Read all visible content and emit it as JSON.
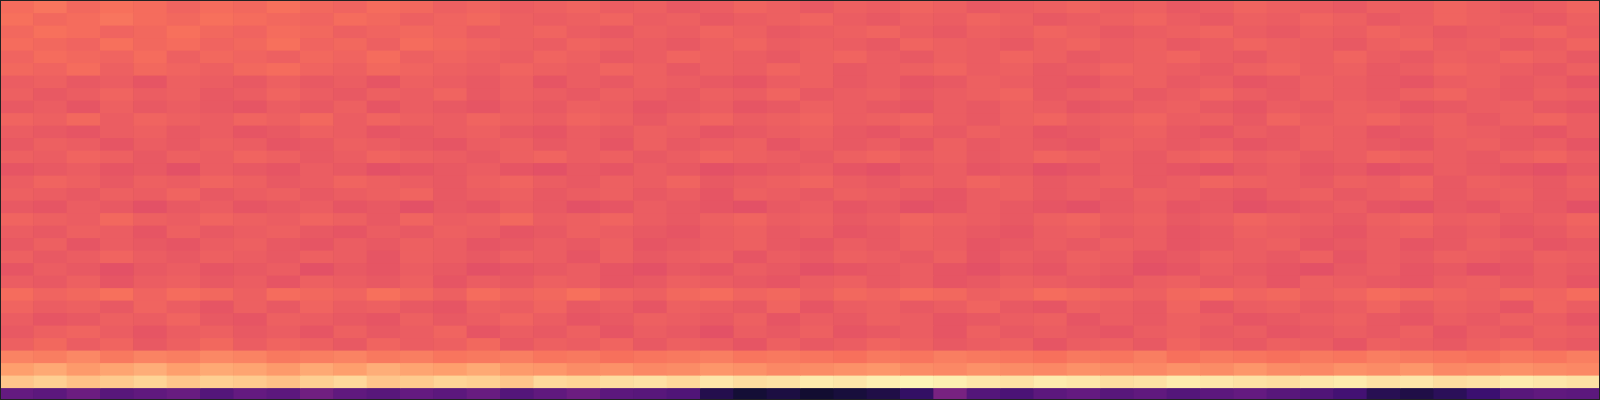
{
  "chart_data": {
    "type": "heatmap",
    "xlim": [
      0,
      48
    ],
    "ylim": [
      0,
      32
    ],
    "zlim": [
      0,
      100
    ],
    "tick_labels": false,
    "grid": false,
    "cells": [
      [
        30,
        28,
        32,
        27,
        29,
        31,
        26,
        30,
        28,
        33,
        29,
        27,
        30,
        28,
        31,
        26,
        29,
        32,
        28,
        27,
        25,
        14,
        10,
        12,
        9,
        11,
        13,
        18,
        35,
        26,
        24,
        28,
        30,
        27,
        29,
        26,
        28,
        30,
        27,
        25,
        22,
        15,
        13,
        16,
        20,
        27,
        29,
        28
      ],
      [
        88,
        90,
        87,
        89,
        91,
        88,
        90,
        89,
        87,
        90,
        92,
        88,
        89,
        91,
        90,
        88,
        92,
        91,
        93,
        94,
        92,
        95,
        93,
        94,
        96,
        95,
        97,
        98,
        97,
        95,
        94,
        96,
        95,
        93,
        94,
        96,
        95,
        94,
        93,
        95,
        96,
        94,
        95,
        93,
        94,
        96,
        95,
        94
      ],
      [
        80,
        82,
        79,
        81,
        83,
        80,
        82,
        81,
        79,
        82,
        80,
        83,
        81,
        80,
        82,
        79,
        78,
        76,
        77,
        75,
        76,
        78,
        77,
        75,
        76,
        77,
        78,
        76,
        75,
        77,
        76,
        75,
        77,
        76,
        75,
        77,
        76,
        78,
        76,
        75,
        77,
        76,
        78,
        75,
        76,
        77,
        76,
        75
      ],
      [
        74,
        73,
        75,
        72,
        74,
        73,
        75,
        74,
        72,
        73,
        74,
        72,
        73,
        71,
        72,
        73,
        71,
        72,
        70,
        71,
        72,
        73,
        71,
        72,
        71,
        70,
        72,
        71,
        73,
        72,
        71,
        70,
        72,
        71,
        73,
        70,
        72,
        71,
        70,
        72,
        71,
        73,
        72,
        71,
        70,
        72,
        71,
        73
      ],
      [
        66,
        68,
        65,
        67,
        64,
        66,
        68,
        65,
        67,
        66,
        64,
        67,
        65,
        66,
        68,
        64,
        66,
        65,
        67,
        64,
        66,
        65,
        63,
        66,
        64,
        65,
        67,
        66,
        64,
        65,
        66,
        63,
        65,
        66,
        64,
        67,
        65,
        64,
        66,
        65,
        63,
        66,
        65,
        64,
        66,
        67,
        65,
        64
      ],
      [
        64,
        66,
        67,
        65,
        63,
        65,
        66,
        64,
        65,
        63,
        66,
        64,
        65,
        67,
        63,
        65,
        64,
        66,
        63,
        65,
        64,
        62,
        65,
        64,
        66,
        63,
        64,
        65,
        63,
        66,
        64,
        65,
        64,
        63,
        65,
        66,
        64,
        65,
        63,
        64,
        65,
        64,
        66,
        63,
        65,
        64,
        66,
        65
      ],
      [
        65,
        63,
        64,
        66,
        65,
        67,
        64,
        63,
        66,
        65,
        64,
        63,
        66,
        64,
        65,
        67,
        65,
        63,
        64,
        66,
        65,
        64,
        66,
        63,
        65,
        64,
        66,
        65,
        63,
        64,
        65,
        66,
        63,
        65,
        64,
        66,
        65,
        63,
        64,
        65,
        66,
        64,
        63,
        65,
        64,
        66,
        65,
        63
      ],
      [
        67,
        65,
        66,
        64,
        67,
        65,
        63,
        66,
        64,
        67,
        65,
        66,
        64,
        63,
        66,
        65,
        67,
        64,
        65,
        63,
        66,
        65,
        64,
        67,
        63,
        65,
        66,
        64,
        65,
        67,
        64,
        63,
        66,
        65,
        64,
        67,
        63,
        65,
        66,
        64,
        65,
        67,
        64,
        66,
        65,
        63,
        67,
        65
      ],
      [
        69,
        67,
        68,
        70,
        67,
        69,
        68,
        66,
        69,
        68,
        67,
        70,
        68,
        66,
        69,
        67,
        68,
        70,
        67,
        66,
        68,
        69,
        67,
        68,
        66,
        68,
        67,
        69,
        68,
        66,
        67,
        69,
        68,
        67,
        66,
        68,
        69,
        67,
        68,
        66,
        67,
        69,
        68,
        67,
        66,
        68,
        67,
        69
      ],
      [
        65,
        64,
        66,
        63,
        65,
        66,
        64,
        65,
        63,
        66,
        65,
        64,
        66,
        63,
        65,
        64,
        66,
        65,
        63,
        64,
        66,
        65,
        64,
        63,
        65,
        66,
        64,
        65,
        63,
        64,
        66,
        65,
        64,
        63,
        65,
        66,
        64,
        65,
        63,
        66,
        65,
        64,
        63,
        65,
        66,
        64,
        65,
        63
      ],
      [
        63,
        65,
        64,
        62,
        64,
        65,
        63,
        64,
        65,
        62,
        64,
        63,
        65,
        64,
        62,
        63,
        64,
        65,
        63,
        62,
        64,
        63,
        65,
        64,
        62,
        63,
        64,
        65,
        63,
        62,
        64,
        63,
        65,
        64,
        62,
        63,
        65,
        64,
        63,
        62,
        64,
        65,
        63,
        64,
        62,
        63,
        65,
        64
      ],
      [
        66,
        64,
        65,
        67,
        65,
        64,
        66,
        65,
        64,
        66,
        65,
        63,
        66,
        65,
        64,
        66,
        65,
        63,
        66,
        64,
        65,
        66,
        63,
        65,
        64,
        66,
        65,
        64,
        66,
        63,
        65,
        64,
        66,
        65,
        63,
        64,
        66,
        65,
        64,
        66,
        63,
        65,
        64,
        66,
        65,
        64,
        66,
        65
      ],
      [
        64,
        66,
        63,
        65,
        64,
        63,
        65,
        66,
        64,
        63,
        65,
        64,
        66,
        65,
        63,
        64,
        65,
        64,
        66,
        63,
        64,
        65,
        66,
        64,
        63,
        65,
        64,
        66,
        65,
        63,
        64,
        65,
        64,
        66,
        65,
        63,
        64,
        65,
        66,
        63,
        64,
        65,
        63,
        64,
        66,
        65,
        63,
        64
      ],
      [
        65,
        64,
        66,
        65,
        63,
        66,
        64,
        65,
        66,
        64,
        63,
        65,
        64,
        66,
        65,
        63,
        64,
        66,
        65,
        64,
        63,
        65,
        66,
        64,
        65,
        63,
        64,
        66,
        65,
        64,
        63,
        65,
        66,
        64,
        65,
        63,
        64,
        66,
        65,
        64,
        63,
        65,
        66,
        64,
        65,
        63,
        64,
        66
      ],
      [
        67,
        66,
        65,
        68,
        66,
        65,
        67,
        66,
        65,
        67,
        66,
        64,
        67,
        65,
        66,
        68,
        65,
        66,
        67,
        65,
        64,
        66,
        67,
        65,
        66,
        64,
        65,
        67,
        66,
        65,
        64,
        66,
        67,
        65,
        66,
        64,
        65,
        67,
        66,
        65,
        64,
        66,
        67,
        65,
        66,
        64,
        65,
        67
      ],
      [
        64,
        63,
        65,
        64,
        62,
        64,
        65,
        63,
        64,
        65,
        63,
        64,
        62,
        64,
        63,
        65,
        64,
        62,
        63,
        65,
        64,
        63,
        62,
        64,
        65,
        63,
        64,
        62,
        63,
        65,
        64,
        63,
        62,
        64,
        65,
        63,
        64,
        62,
        63,
        64,
        65,
        63,
        62,
        64,
        63,
        65,
        64,
        62
      ],
      [
        66,
        65,
        64,
        66,
        65,
        67,
        64,
        65,
        66,
        64,
        65,
        66,
        67,
        64,
        65,
        66,
        64,
        65,
        66,
        64,
        65,
        63,
        66,
        65,
        64,
        66,
        65,
        64,
        63,
        65,
        66,
        64,
        65,
        64,
        66,
        65,
        64,
        63,
        65,
        66,
        64,
        65,
        66,
        64,
        65,
        66,
        64,
        65
      ],
      [
        65,
        67,
        66,
        64,
        66,
        65,
        67,
        66,
        64,
        65,
        67,
        66,
        65,
        64,
        66,
        67,
        65,
        64,
        66,
        65,
        67,
        64,
        65,
        66,
        67,
        65,
        64,
        66,
        65,
        67,
        66,
        64,
        65,
        66,
        64,
        65,
        67,
        66,
        65,
        64,
        66,
        65,
        67,
        64,
        66,
        65,
        64,
        66
      ],
      [
        63,
        64,
        65,
        63,
        64,
        62,
        65,
        64,
        63,
        65,
        64,
        62,
        63,
        64,
        65,
        63,
        62,
        64,
        63,
        65,
        64,
        62,
        63,
        64,
        65,
        63,
        62,
        64,
        65,
        63,
        64,
        62,
        63,
        65,
        64,
        63,
        62,
        64,
        65,
        63,
        64,
        62,
        63,
        65,
        64,
        63,
        62,
        64
      ],
      [
        66,
        65,
        67,
        66,
        64,
        66,
        65,
        67,
        66,
        64,
        65,
        67,
        66,
        65,
        64,
        66,
        67,
        65,
        66,
        64,
        65,
        67,
        66,
        65,
        64,
        66,
        67,
        65,
        66,
        64,
        65,
        67,
        66,
        65,
        64,
        66,
        67,
        65,
        66,
        64,
        65,
        67,
        66,
        65,
        64,
        66,
        67,
        65
      ],
      [
        64,
        66,
        65,
        63,
        65,
        64,
        66,
        65,
        63,
        64,
        66,
        65,
        64,
        63,
        65,
        66,
        64,
        65,
        63,
        66,
        64,
        65,
        66,
        63,
        65,
        64,
        65,
        63,
        66,
        64,
        65,
        64,
        63,
        66,
        65,
        64,
        65,
        63,
        64,
        66,
        65,
        64,
        63,
        65,
        66,
        64,
        65,
        63
      ],
      [
        65,
        64,
        63,
        65,
        66,
        64,
        65,
        63,
        64,
        66,
        65,
        63,
        64,
        65,
        66,
        64,
        63,
        65,
        64,
        66,
        65,
        63,
        64,
        65,
        66,
        64,
        63,
        65,
        64,
        66,
        65,
        63,
        64,
        65,
        66,
        64,
        63,
        65,
        64,
        66,
        65,
        63,
        64,
        66,
        65,
        64,
        63,
        65
      ],
      [
        67,
        66,
        68,
        65,
        67,
        66,
        65,
        67,
        66,
        68,
        65,
        67,
        66,
        65,
        67,
        66,
        65,
        67,
        66,
        64,
        66,
        67,
        65,
        66,
        67,
        65,
        66,
        67,
        65,
        64,
        66,
        67,
        65,
        66,
        67,
        65,
        66,
        64,
        67,
        65,
        66,
        67,
        65,
        66,
        64,
        66,
        67,
        65
      ],
      [
        64,
        65,
        63,
        66,
        64,
        65,
        64,
        63,
        65,
        64,
        66,
        63,
        65,
        64,
        63,
        65,
        64,
        66,
        65,
        63,
        64,
        65,
        63,
        64,
        66,
        65,
        64,
        63,
        65,
        64,
        66,
        65,
        63,
        64,
        65,
        66,
        64,
        63,
        65,
        64,
        66,
        65,
        63,
        64,
        65,
        66,
        64,
        63
      ],
      [
        66,
        64,
        65,
        67,
        65,
        66,
        64,
        65,
        67,
        65,
        64,
        66,
        65,
        67,
        64,
        66,
        65,
        64,
        66,
        65,
        64,
        66,
        65,
        67,
        64,
        65,
        66,
        64,
        65,
        66,
        67,
        64,
        65,
        66,
        64,
        65,
        67,
        65,
        64,
        66,
        65,
        64,
        66,
        67,
        65,
        64,
        66,
        65
      ],
      [
        65,
        66,
        64,
        65,
        63,
        66,
        65,
        64,
        66,
        64,
        65,
        63,
        66,
        65,
        64,
        66,
        63,
        65,
        64,
        66,
        65,
        64,
        63,
        65,
        66,
        64,
        65,
        63,
        64,
        66,
        65,
        64,
        63,
        65,
        66,
        64,
        65,
        63,
        64,
        66,
        65,
        64,
        63,
        65,
        66,
        64,
        65,
        63
      ],
      [
        68,
        67,
        69,
        66,
        68,
        67,
        66,
        68,
        69,
        67,
        66,
        68,
        67,
        66,
        65,
        67,
        66,
        65,
        67,
        66,
        64,
        66,
        65,
        67,
        66,
        64,
        65,
        66,
        67,
        65,
        66,
        64,
        65,
        67,
        66,
        65,
        64,
        66,
        67,
        65,
        66,
        64,
        65,
        67,
        66,
        65,
        64,
        66
      ],
      [
        67,
        69,
        68,
        67,
        69,
        66,
        68,
        67,
        66,
        68,
        67,
        69,
        66,
        67,
        66,
        65,
        67,
        66,
        64,
        65,
        67,
        66,
        65,
        64,
        66,
        67,
        65,
        64,
        66,
        65,
        67,
        66,
        64,
        65,
        66,
        67,
        65,
        64,
        66,
        65,
        67,
        65,
        64,
        66,
        65,
        67,
        66,
        64
      ],
      [
        69,
        68,
        67,
        70,
        68,
        69,
        67,
        68,
        70,
        67,
        68,
        66,
        69,
        68,
        67,
        66,
        65,
        67,
        66,
        65,
        64,
        66,
        67,
        65,
        66,
        65,
        64,
        67,
        66,
        65,
        64,
        66,
        67,
        65,
        66,
        64,
        65,
        67,
        66,
        65,
        64,
        66,
        67,
        65,
        66,
        64,
        65,
        67
      ],
      [
        68,
        70,
        69,
        67,
        68,
        70,
        68,
        67,
        69,
        68,
        66,
        67,
        68,
        67,
        65,
        66,
        67,
        65,
        64,
        66,
        65,
        67,
        66,
        64,
        65,
        66,
        67,
        65,
        64,
        66,
        65,
        67,
        66,
        64,
        65,
        66,
        67,
        65,
        64,
        66,
        65,
        67,
        66,
        64,
        65,
        66,
        67,
        65
      ],
      [
        70,
        68,
        69,
        71,
        69,
        68,
        70,
        69,
        68,
        67,
        69,
        68,
        66,
        67,
        68,
        66,
        65,
        66,
        67,
        65,
        66,
        64,
        65,
        66,
        67,
        65,
        64,
        66,
        65,
        67,
        66,
        64,
        65,
        66,
        67,
        65,
        64,
        66,
        65,
        67,
        66,
        64,
        65,
        67,
        66,
        65,
        64,
        66
      ],
      [
        69,
        71,
        68,
        70,
        69,
        67,
        69,
        68,
        70,
        68,
        67,
        69,
        68,
        66,
        67,
        65,
        66,
        67,
        65,
        66,
        64,
        65,
        67,
        66,
        64,
        66,
        65,
        67,
        66,
        64,
        65,
        66,
        67,
        65,
        66,
        64,
        65,
        67,
        66,
        65,
        64,
        66,
        65,
        67,
        66,
        64,
        65,
        67
      ]
    ]
  }
}
